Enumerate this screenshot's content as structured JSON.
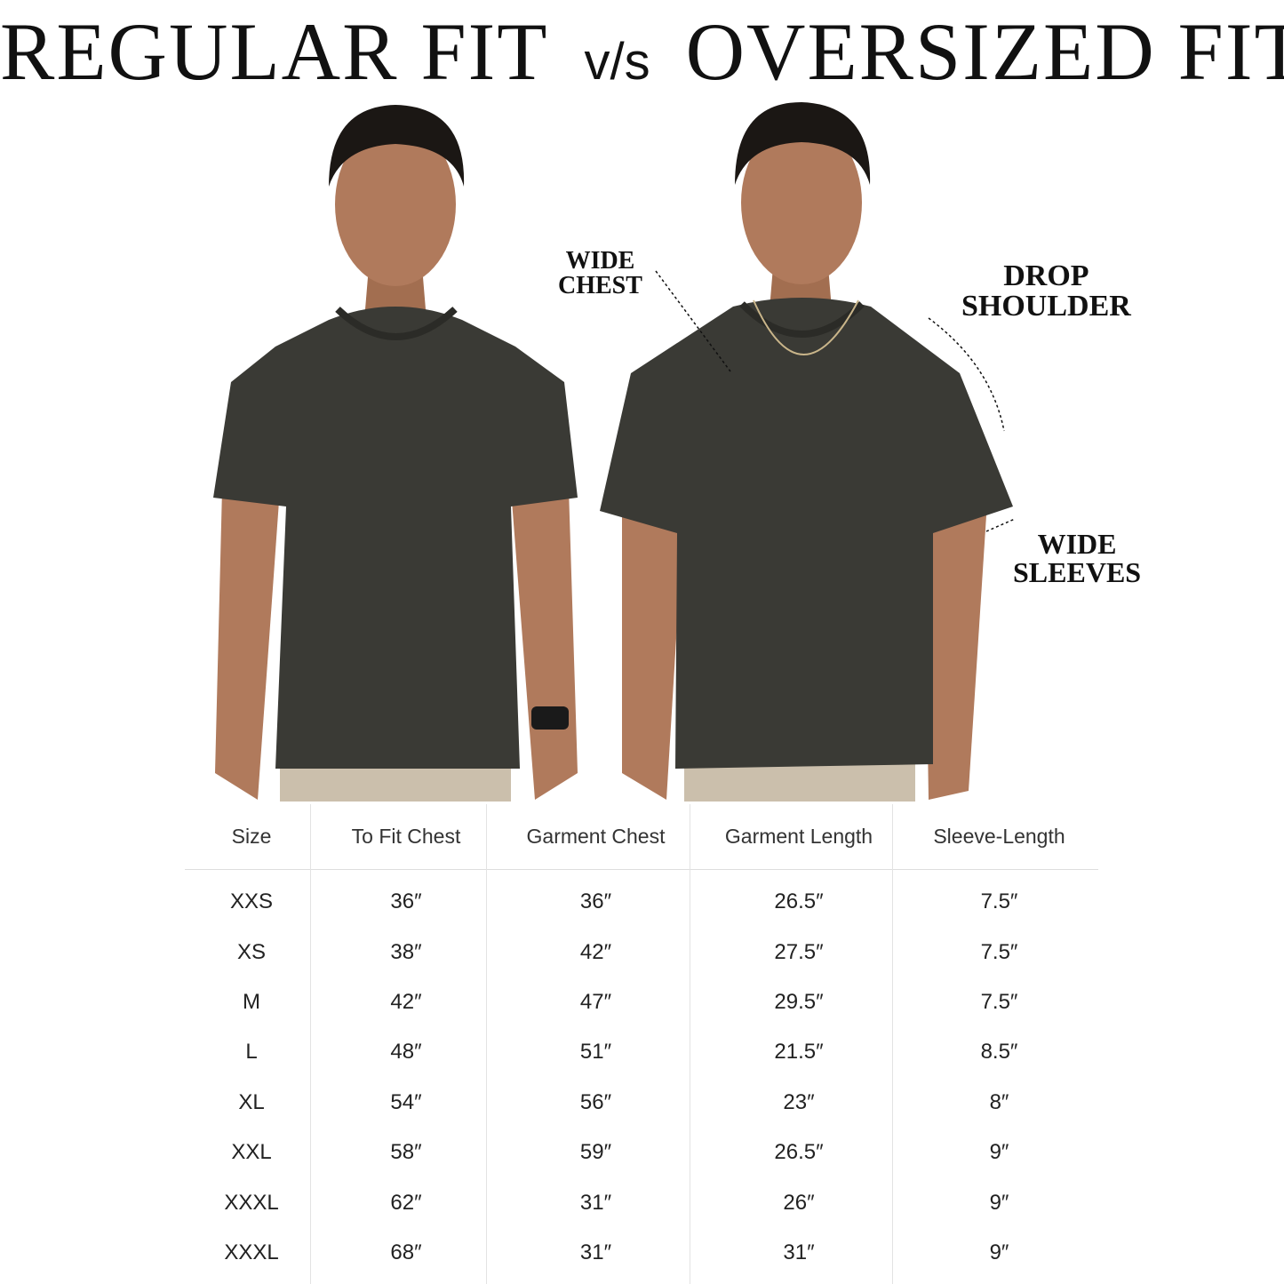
{
  "title": {
    "left": "REGULAR FIT",
    "vs": "v/s",
    "right": "OVERSIZED FIT"
  },
  "annotations": {
    "wide_chest": [
      "WIDE",
      "CHEST"
    ],
    "drop_shoulder": [
      "DROP",
      "SHOULDER"
    ],
    "wide_sleeves": [
      "WIDE",
      "SLEEVES"
    ]
  },
  "colors": {
    "shirt": "#3a3a35",
    "skin": "#b07a5c",
    "hair": "#1b1714",
    "pants": "#cbbfac"
  },
  "size_table": {
    "headers": [
      "Size",
      "To Fit Chest",
      "Garment Chest",
      "Garment Length",
      "Sleeve-Length"
    ],
    "rows": [
      [
        "XXS",
        "36″",
        "36″",
        "26.5″",
        "7.5″"
      ],
      [
        "XS",
        "38″",
        "42″",
        "27.5″",
        "7.5″"
      ],
      [
        "M",
        "42″",
        "47″",
        "29.5″",
        "7.5″"
      ],
      [
        "L",
        "48″",
        "51″",
        "21.5″",
        "8.5″"
      ],
      [
        "XL",
        "54″",
        "56″",
        "23″",
        "8″"
      ],
      [
        "XXL",
        "58″",
        "59″",
        "26.5″",
        "9″"
      ],
      [
        "XXXL",
        "62″",
        "31″",
        "26″",
        "9″"
      ],
      [
        "XXXL",
        "68″",
        "31″",
        "31″",
        "9″"
      ]
    ]
  }
}
